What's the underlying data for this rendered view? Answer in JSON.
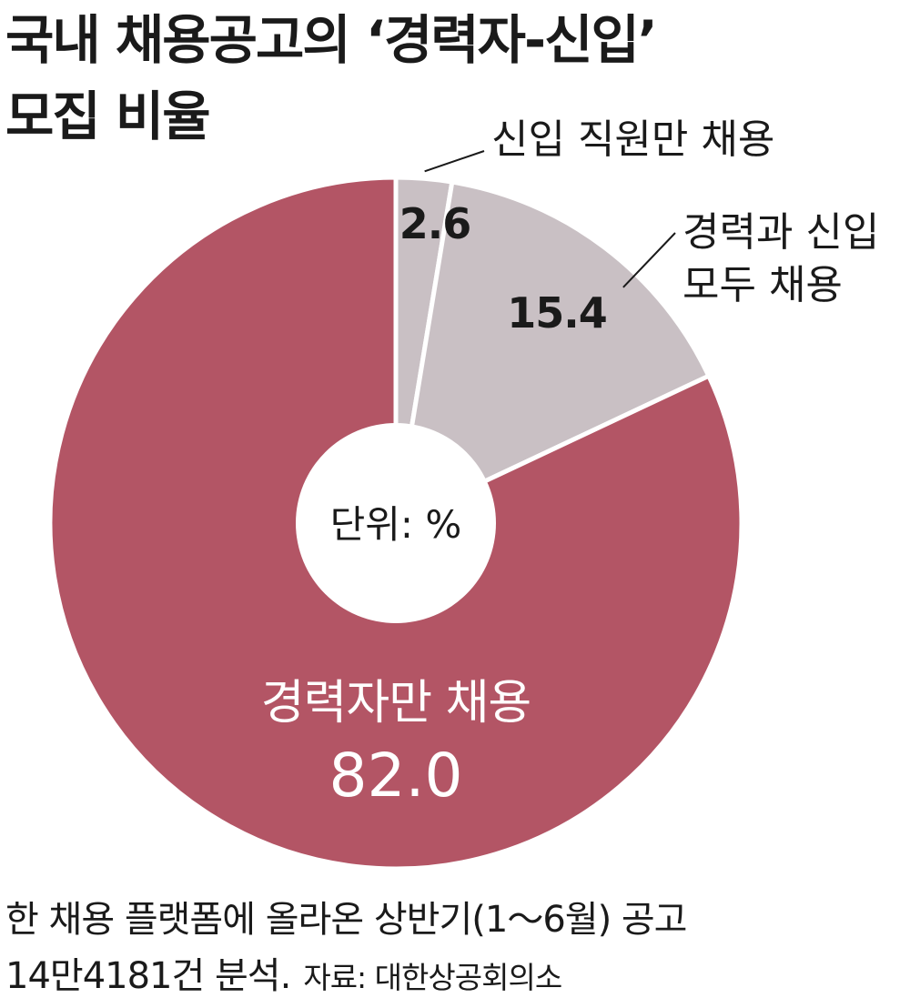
{
  "title": {
    "line1": "국내 채용공고의 ‘경력자-신입’",
    "line2": "모집 비율"
  },
  "chart_data": {
    "type": "pie",
    "unit_label": "단위: %",
    "slices": [
      {
        "label": "신입 직원만 채용",
        "value": 2.6,
        "color": "#c9c0c4"
      },
      {
        "label": "경력과 신입 모두 채용",
        "label_lines": [
          "경력과 신입",
          "모두 채용"
        ],
        "value": 15.4,
        "color": "#c9c0c4"
      },
      {
        "label": "경력자만 채용",
        "value": 82.0,
        "value_text": "82.0",
        "color": "#b35565"
      }
    ]
  },
  "footer": {
    "line1": "한 채용 플랫폼에 올라온 상반기(1～6월) 공고",
    "line2": "14만4181건 분석.",
    "source": "자료: 대한상공회의소"
  }
}
